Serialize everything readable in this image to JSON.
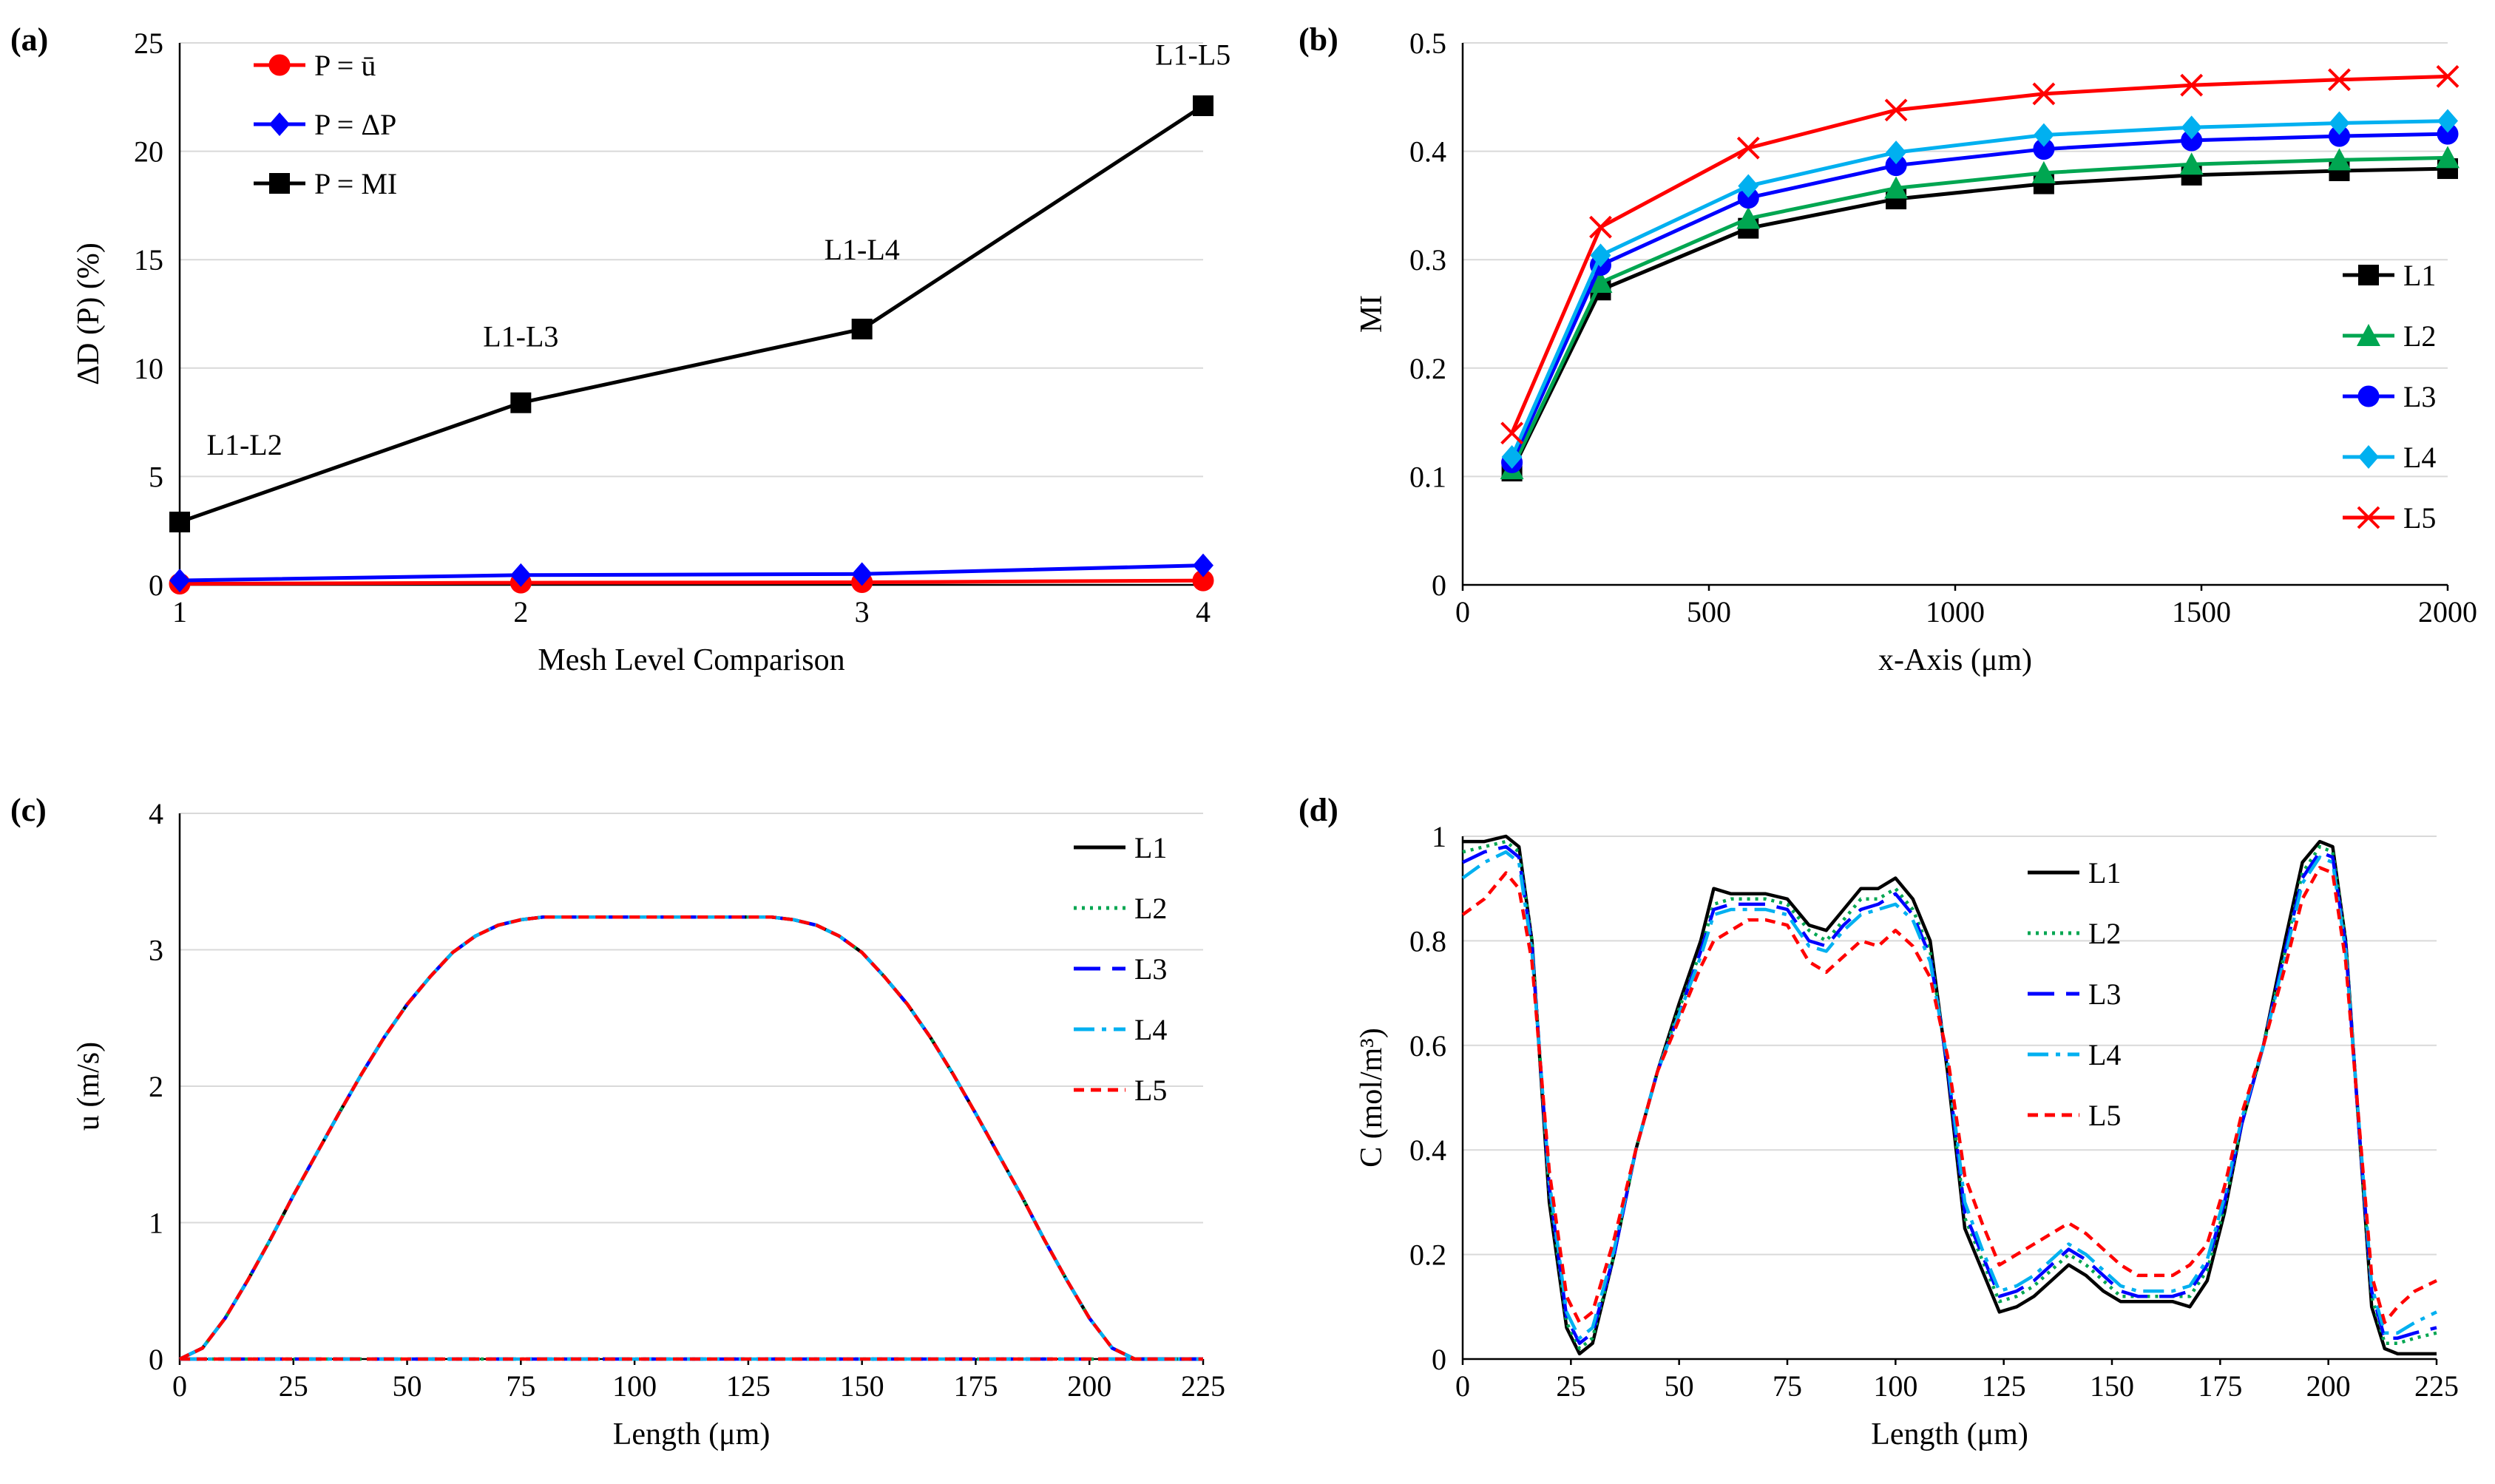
{
  "chart_data": [
    {
      "id": "a",
      "panel_label": "(a)",
      "type": "line",
      "xlabel": "Mesh Level Comparison",
      "ylabel": "ΔD (P)  (%)",
      "xlim": [
        1,
        4
      ],
      "ylim": [
        0,
        25
      ],
      "xticks": [
        1,
        2,
        3,
        4
      ],
      "yticks": [
        0,
        5,
        10,
        15,
        20,
        25
      ],
      "grid": true,
      "legend_position": "top-left",
      "series": [
        {
          "name": "P = ū",
          "color": "#ff0000",
          "marker": "circle",
          "x": [
            1,
            2,
            3,
            4
          ],
          "y": [
            0.05,
            0.1,
            0.12,
            0.2
          ]
        },
        {
          "name": "P = ΔP",
          "color": "#0000ff",
          "marker": "diamond",
          "x": [
            1,
            2,
            3,
            4
          ],
          "y": [
            0.2,
            0.45,
            0.5,
            0.9
          ]
        },
        {
          "name": "P = MI",
          "color": "#000000",
          "marker": "square",
          "x": [
            1,
            2,
            3,
            4
          ],
          "y": [
            2.9,
            8.4,
            11.8,
            22.1
          ]
        }
      ],
      "annotations": [
        {
          "text": "L1-L2",
          "x": 1.19,
          "y": 6.0
        },
        {
          "text": "L1-L3",
          "x": 2.0,
          "y": 11.0
        },
        {
          "text": "L1-L4",
          "x": 3.0,
          "y": 15.0
        },
        {
          "text": "L1-L5",
          "x": 3.97,
          "y": 24.0
        }
      ]
    },
    {
      "id": "b",
      "panel_label": "(b)",
      "type": "line",
      "xlabel": "x-Axis (μm)",
      "ylabel": "MI",
      "xlim": [
        0,
        2000
      ],
      "ylim": [
        0,
        0.5
      ],
      "xticks": [
        0,
        500,
        1000,
        1500,
        2000
      ],
      "yticks": [
        0,
        0.1,
        0.2,
        0.3,
        0.4,
        0.5
      ],
      "ytick_labels": [
        "0",
        "0.1",
        "0.2",
        "0.3",
        "0.4",
        "0.5"
      ],
      "grid": true,
      "legend_position": "right",
      "series": [
        {
          "name": "L1",
          "color": "#000000",
          "marker": "square",
          "x": [
            100,
            280,
            580,
            880,
            1180,
            1480,
            1780,
            2000
          ],
          "y": [
            0.105,
            0.272,
            0.329,
            0.356,
            0.37,
            0.378,
            0.382,
            0.384
          ]
        },
        {
          "name": "L2",
          "color": "#00a651",
          "marker": "triangle",
          "x": [
            100,
            280,
            580,
            880,
            1180,
            1480,
            1780,
            2000
          ],
          "y": [
            0.107,
            0.279,
            0.338,
            0.366,
            0.38,
            0.388,
            0.392,
            0.394
          ]
        },
        {
          "name": "L3",
          "color": "#0000ff",
          "marker": "circle",
          "x": [
            100,
            280,
            580,
            880,
            1180,
            1480,
            1780,
            2000
          ],
          "y": [
            0.113,
            0.295,
            0.357,
            0.387,
            0.402,
            0.41,
            0.414,
            0.416
          ]
        },
        {
          "name": "L4",
          "color": "#00b0f0",
          "marker": "diamond",
          "x": [
            100,
            280,
            580,
            880,
            1180,
            1480,
            1780,
            2000
          ],
          "y": [
            0.118,
            0.304,
            0.368,
            0.399,
            0.415,
            0.422,
            0.426,
            0.428
          ]
        },
        {
          "name": "L5",
          "color": "#ff0000",
          "marker": "x",
          "x": [
            100,
            280,
            580,
            880,
            1180,
            1480,
            1780,
            2000
          ],
          "y": [
            0.14,
            0.33,
            0.403,
            0.438,
            0.453,
            0.461,
            0.466,
            0.469
          ]
        }
      ]
    },
    {
      "id": "c",
      "panel_label": "(c)",
      "type": "line",
      "xlabel": "Length (μm)",
      "ylabel": "u (m/s)",
      "xlim": [
        0,
        225
      ],
      "ylim": [
        0,
        4
      ],
      "xticks": [
        0,
        25,
        50,
        75,
        100,
        125,
        150,
        175,
        200,
        225
      ],
      "yticks": [
        0,
        1,
        2,
        3,
        4
      ],
      "grid": true,
      "legend_position": "top-right",
      "series": [
        {
          "name": "L1",
          "color": "#000000",
          "dash": "solid",
          "x": [
            0,
            5,
            10,
            15,
            20,
            25,
            30,
            35,
            40,
            45,
            50,
            55,
            60,
            65,
            70,
            75,
            80,
            85,
            90,
            95,
            100,
            105,
            110,
            115,
            120,
            125,
            130,
            135,
            140,
            145,
            150,
            155,
            160,
            165,
            170,
            175,
            180,
            185,
            190,
            195,
            200,
            205,
            210,
            215,
            220,
            225
          ],
          "y": [
            0,
            0.08,
            0.3,
            0.58,
            0.88,
            1.2,
            1.5,
            1.8,
            2.09,
            2.36,
            2.6,
            2.8,
            2.98,
            3.1,
            3.18,
            3.22,
            3.24,
            3.24,
            3.24,
            3.24,
            3.24,
            3.24,
            3.24,
            3.24,
            3.24,
            3.24,
            3.24,
            3.22,
            3.18,
            3.1,
            2.98,
            2.8,
            2.6,
            2.36,
            2.09,
            1.8,
            1.5,
            1.2,
            0.88,
            0.58,
            0.3,
            0.08,
            0,
            0,
            0,
            0
          ]
        },
        {
          "name": "L2",
          "color": "#00a651",
          "dash": "dotted",
          "x": [
            0,
            225
          ],
          "y": [
            0,
            0
          ]
        },
        {
          "name": "L3",
          "color": "#0000ff",
          "dash": "longdash",
          "x": [
            0,
            225
          ],
          "y": [
            0,
            0
          ]
        },
        {
          "name": "L4",
          "color": "#00b0f0",
          "dash": "dashdot",
          "x": [
            0,
            225
          ],
          "y": [
            0,
            0
          ]
        },
        {
          "name": "L5",
          "color": "#ff0000",
          "dash": "shortdash",
          "x": [
            0,
            225
          ],
          "y": [
            0,
            0
          ]
        }
      ]
    },
    {
      "id": "d",
      "panel_label": "(d)",
      "type": "line",
      "xlabel": "Length (μm)",
      "ylabel": "C (mol/m³)",
      "xlim": [
        0,
        225
      ],
      "ylim": [
        0,
        1
      ],
      "xticks": [
        0,
        25,
        50,
        75,
        100,
        125,
        150,
        175,
        200,
        225
      ],
      "yticks": [
        0,
        0.2,
        0.4,
        0.6,
        0.8,
        1
      ],
      "ytick_labels": [
        "0",
        "0.2",
        "0.4",
        "0.6",
        "0.8",
        "1"
      ],
      "grid": true,
      "legend_position": "top-center",
      "series": [
        {
          "name": "L1",
          "color": "#000000",
          "dash": "solid",
          "x": [
            0,
            5,
            10,
            13,
            16,
            20,
            24,
            27,
            30,
            35,
            40,
            45,
            50,
            55,
            58,
            62,
            66,
            70,
            75,
            80,
            84,
            88,
            92,
            96,
            100,
            104,
            108,
            112,
            116,
            120,
            124,
            128,
            132,
            136,
            140,
            144,
            148,
            152,
            156,
            160,
            164,
            168,
            172,
            176,
            180,
            185,
            190,
            194,
            198,
            201,
            204,
            207,
            210,
            213,
            216,
            220,
            225
          ],
          "y": [
            0.99,
            0.99,
            1.0,
            0.98,
            0.8,
            0.3,
            0.06,
            0.01,
            0.03,
            0.2,
            0.4,
            0.55,
            0.68,
            0.8,
            0.9,
            0.89,
            0.89,
            0.89,
            0.88,
            0.83,
            0.82,
            0.86,
            0.9,
            0.9,
            0.92,
            0.88,
            0.8,
            0.55,
            0.25,
            0.17,
            0.09,
            0.1,
            0.12,
            0.15,
            0.18,
            0.16,
            0.13,
            0.11,
            0.11,
            0.11,
            0.11,
            0.1,
            0.15,
            0.28,
            0.45,
            0.6,
            0.8,
            0.95,
            0.99,
            0.98,
            0.8,
            0.45,
            0.1,
            0.02,
            0.01,
            0.01,
            0.01
          ]
        },
        {
          "name": "L2",
          "color": "#00a651",
          "dash": "dotted",
          "x": [
            0,
            5,
            10,
            13,
            16,
            20,
            24,
            27,
            30,
            35,
            40,
            45,
            50,
            55,
            58,
            62,
            66,
            70,
            75,
            80,
            84,
            88,
            92,
            96,
            100,
            104,
            108,
            112,
            116,
            120,
            124,
            128,
            132,
            136,
            140,
            144,
            148,
            152,
            156,
            160,
            164,
            168,
            172,
            176,
            180,
            185,
            190,
            194,
            198,
            201,
            204,
            207,
            210,
            213,
            216,
            220,
            225
          ],
          "y": [
            0.97,
            0.98,
            0.99,
            0.97,
            0.8,
            0.32,
            0.07,
            0.02,
            0.04,
            0.2,
            0.4,
            0.55,
            0.67,
            0.78,
            0.87,
            0.88,
            0.88,
            0.88,
            0.87,
            0.82,
            0.8,
            0.84,
            0.88,
            0.88,
            0.9,
            0.86,
            0.78,
            0.56,
            0.27,
            0.19,
            0.11,
            0.12,
            0.14,
            0.17,
            0.2,
            0.18,
            0.15,
            0.12,
            0.12,
            0.12,
            0.12,
            0.12,
            0.17,
            0.29,
            0.45,
            0.6,
            0.78,
            0.93,
            0.98,
            0.97,
            0.8,
            0.45,
            0.12,
            0.03,
            0.03,
            0.04,
            0.05
          ]
        },
        {
          "name": "L3",
          "color": "#0000ff",
          "dash": "longdash",
          "x": [
            0,
            5,
            10,
            13,
            16,
            20,
            24,
            27,
            30,
            35,
            40,
            45,
            50,
            55,
            58,
            62,
            66,
            70,
            75,
            80,
            84,
            88,
            92,
            96,
            100,
            104,
            108,
            112,
            116,
            120,
            124,
            128,
            132,
            136,
            140,
            144,
            148,
            152,
            156,
            160,
            164,
            168,
            172,
            176,
            180,
            185,
            190,
            194,
            198,
            201,
            204,
            207,
            210,
            213,
            216,
            220,
            225
          ],
          "y": [
            0.95,
            0.97,
            0.98,
            0.96,
            0.79,
            0.33,
            0.08,
            0.03,
            0.05,
            0.2,
            0.4,
            0.55,
            0.66,
            0.78,
            0.86,
            0.87,
            0.87,
            0.87,
            0.86,
            0.8,
            0.79,
            0.83,
            0.86,
            0.87,
            0.89,
            0.85,
            0.77,
            0.56,
            0.28,
            0.2,
            0.12,
            0.13,
            0.15,
            0.18,
            0.21,
            0.19,
            0.16,
            0.13,
            0.12,
            0.12,
            0.12,
            0.13,
            0.18,
            0.3,
            0.45,
            0.6,
            0.78,
            0.92,
            0.97,
            0.96,
            0.79,
            0.45,
            0.13,
            0.04,
            0.04,
            0.05,
            0.06
          ]
        },
        {
          "name": "L4",
          "color": "#00b0f0",
          "dash": "dashdot",
          "x": [
            0,
            5,
            10,
            13,
            16,
            20,
            24,
            27,
            30,
            35,
            40,
            45,
            50,
            55,
            58,
            62,
            66,
            70,
            75,
            80,
            84,
            88,
            92,
            96,
            100,
            104,
            108,
            112,
            116,
            120,
            124,
            128,
            132,
            136,
            140,
            144,
            148,
            152,
            156,
            160,
            164,
            168,
            172,
            176,
            180,
            185,
            190,
            194,
            198,
            201,
            204,
            207,
            210,
            213,
            216,
            220,
            225
          ],
          "y": [
            0.92,
            0.95,
            0.97,
            0.95,
            0.78,
            0.34,
            0.09,
            0.04,
            0.06,
            0.21,
            0.4,
            0.55,
            0.66,
            0.77,
            0.85,
            0.86,
            0.86,
            0.86,
            0.85,
            0.79,
            0.78,
            0.82,
            0.85,
            0.86,
            0.87,
            0.84,
            0.76,
            0.57,
            0.3,
            0.21,
            0.13,
            0.14,
            0.16,
            0.19,
            0.22,
            0.2,
            0.17,
            0.14,
            0.13,
            0.13,
            0.13,
            0.14,
            0.19,
            0.31,
            0.46,
            0.6,
            0.77,
            0.91,
            0.96,
            0.95,
            0.78,
            0.46,
            0.14,
            0.05,
            0.05,
            0.07,
            0.09
          ]
        },
        {
          "name": "L5",
          "color": "#ff0000",
          "dash": "shortdash",
          "x": [
            0,
            5,
            10,
            13,
            16,
            20,
            24,
            27,
            30,
            35,
            40,
            45,
            50,
            55,
            58,
            62,
            66,
            70,
            75,
            80,
            84,
            88,
            92,
            96,
            100,
            104,
            108,
            112,
            116,
            120,
            124,
            128,
            132,
            136,
            140,
            144,
            148,
            152,
            156,
            160,
            164,
            168,
            172,
            176,
            180,
            185,
            190,
            194,
            198,
            201,
            204,
            207,
            210,
            213,
            216,
            220,
            225
          ],
          "y": [
            0.85,
            0.88,
            0.93,
            0.9,
            0.76,
            0.36,
            0.12,
            0.07,
            0.09,
            0.23,
            0.4,
            0.55,
            0.65,
            0.75,
            0.8,
            0.82,
            0.84,
            0.84,
            0.83,
            0.76,
            0.74,
            0.77,
            0.8,
            0.79,
            0.82,
            0.79,
            0.73,
            0.58,
            0.35,
            0.26,
            0.18,
            0.2,
            0.22,
            0.24,
            0.26,
            0.24,
            0.21,
            0.18,
            0.16,
            0.16,
            0.16,
            0.18,
            0.22,
            0.33,
            0.47,
            0.6,
            0.75,
            0.88,
            0.94,
            0.93,
            0.76,
            0.46,
            0.16,
            0.07,
            0.1,
            0.13,
            0.15
          ]
        }
      ]
    }
  ]
}
